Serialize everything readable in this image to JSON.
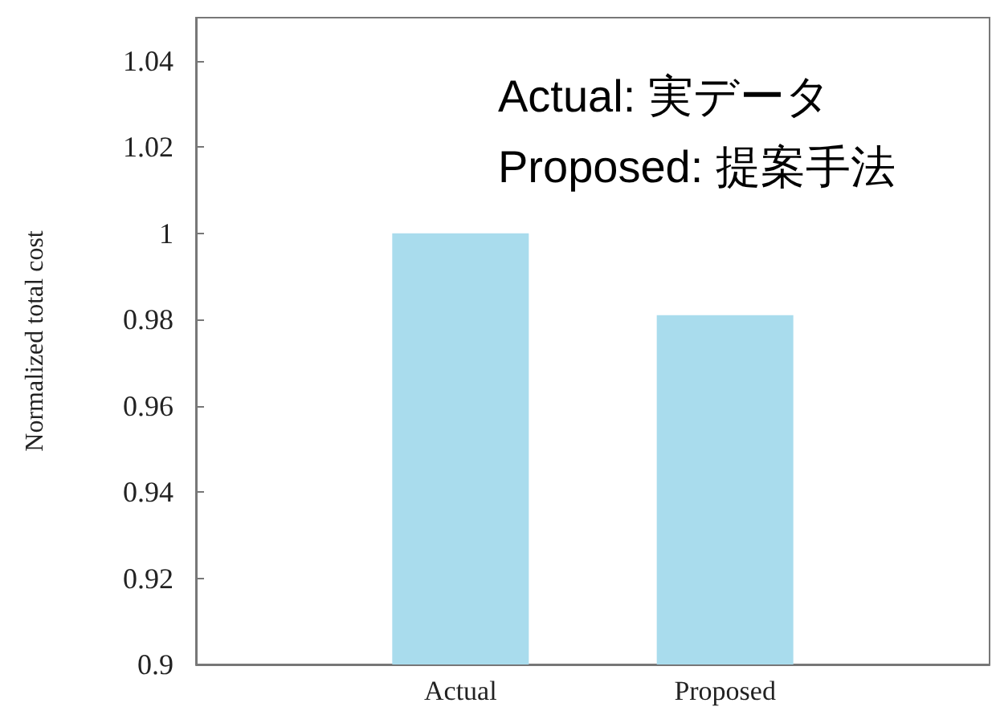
{
  "chart_data": {
    "type": "bar",
    "ylabel": "Normalized total cost",
    "categories": [
      "Actual",
      "Proposed"
    ],
    "values": [
      1.0,
      0.981
    ],
    "color": "#a9dced",
    "ylim": [
      0.9,
      1.05
    ],
    "yticks": [
      0.9,
      0.92,
      0.94,
      0.96,
      0.98,
      1,
      1.02,
      1.04
    ],
    "grid": false,
    "annotations": [
      "Actual: 実データ",
      "Proposed: 提案手法"
    ]
  }
}
